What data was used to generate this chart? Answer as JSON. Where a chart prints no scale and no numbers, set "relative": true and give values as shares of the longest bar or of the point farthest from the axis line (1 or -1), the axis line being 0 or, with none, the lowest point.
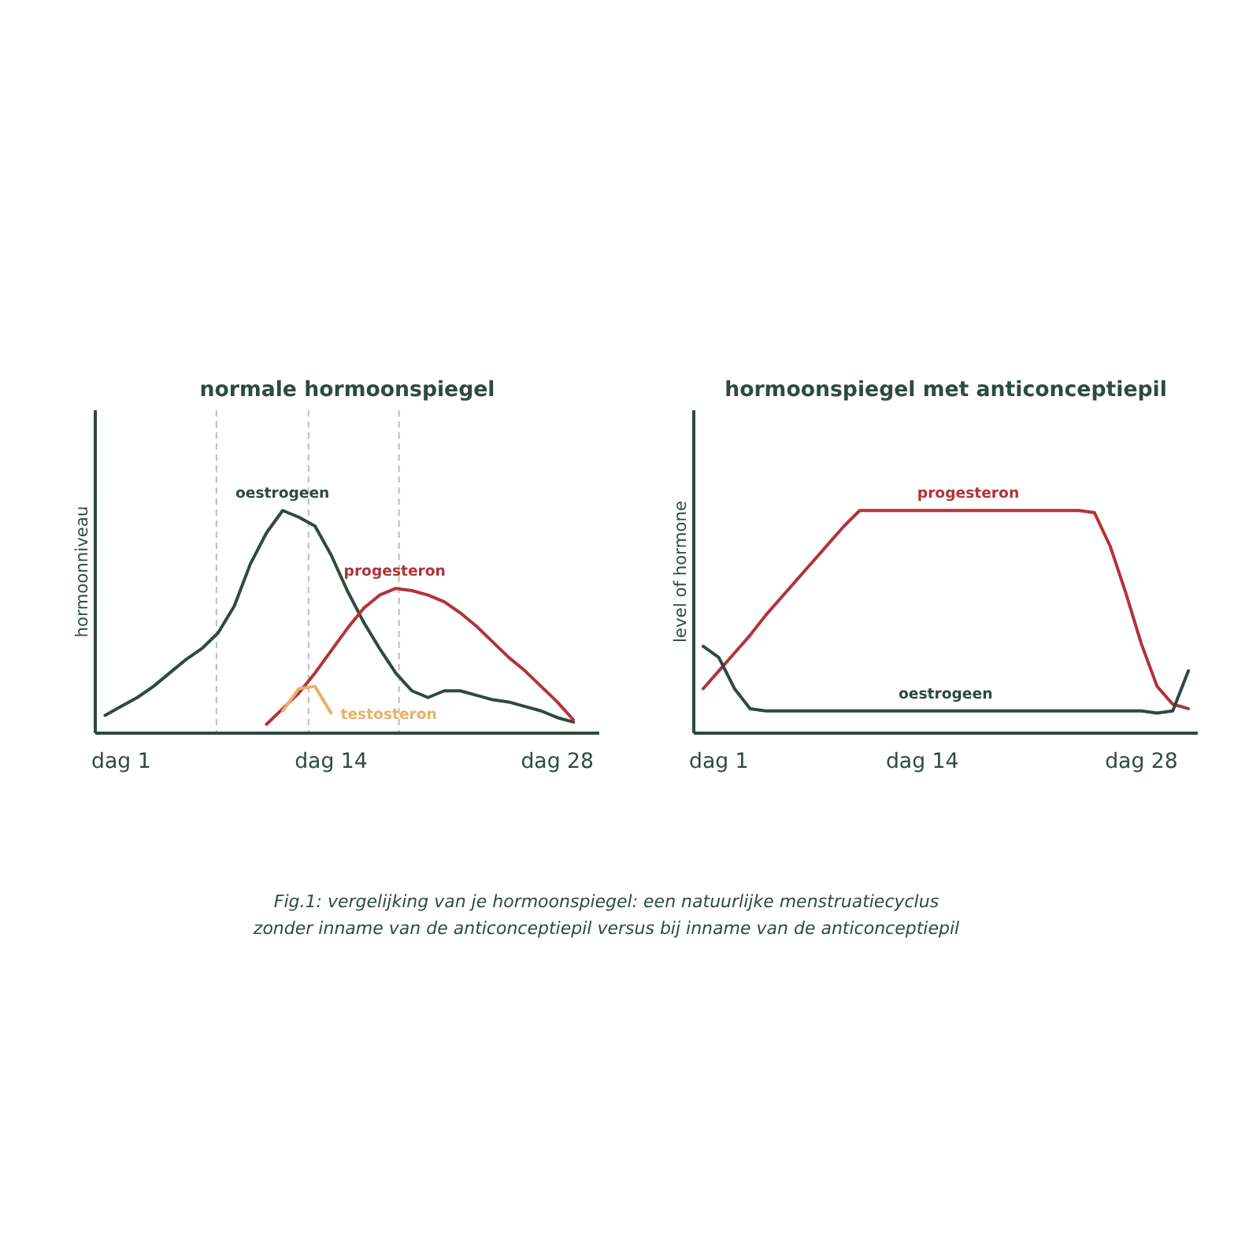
{
  "chart_data": [
    {
      "type": "line",
      "title": "normale hormoonspiegel",
      "ylabel": "hormoonniveau",
      "relative": true,
      "grid": false,
      "marker": "none",
      "line_style": "solid",
      "categories": [
        null,
        "dag 1",
        null,
        null,
        null,
        null,
        null,
        null,
        null,
        null,
        null,
        null,
        null,
        null,
        "dag 14",
        null,
        null,
        null,
        null,
        null,
        null,
        null,
        null,
        null,
        null,
        null,
        null,
        null,
        "dag 28",
        null,
        null
      ],
      "series": [
        {
          "name": "oestrogeen",
          "color": "#2d4a3e",
          "values": [
            0.08,
            0.12,
            0.16,
            0.21,
            0.27,
            0.33,
            0.38,
            0.45,
            0.57,
            0.76,
            0.9,
            1.0,
            0.97,
            0.93,
            0.8,
            0.64,
            0.5,
            0.38,
            0.27,
            0.19,
            0.16,
            0.19,
            0.19,
            0.17,
            0.15,
            0.14,
            0.12,
            0.1,
            0.07,
            0.05,
            null
          ]
        },
        {
          "name": "progesteron",
          "color": "#b0343a",
          "values": [
            null,
            null,
            null,
            null,
            null,
            null,
            null,
            null,
            null,
            null,
            0.04,
            0.11,
            0.18,
            0.27,
            0.37,
            0.47,
            0.56,
            0.62,
            0.65,
            0.64,
            0.62,
            0.59,
            0.54,
            0.48,
            0.41,
            0.34,
            0.28,
            0.21,
            0.14,
            0.06,
            null
          ]
        },
        {
          "name": "testosteron",
          "color": "#e6b26a",
          "values": [
            null,
            null,
            null,
            null,
            null,
            null,
            null,
            null,
            null,
            null,
            null,
            0.1,
            0.2,
            0.21,
            0.09,
            null,
            null,
            null,
            null,
            null,
            null,
            null,
            null,
            null,
            null,
            null,
            null,
            null,
            null,
            null,
            null
          ]
        }
      ],
      "annotations": [
        "Fig.1: vergelijking van je hormoonspiegel: een natuurlijke menstruatiecyclus\nzonder inname van de anticonceptiepil versus bij inname van de anticonceptiepil"
      ]
    },
    {
      "type": "line",
      "title": "hormoonspiegel met anticonceptiepil",
      "ylabel": "level of hormone",
      "relative": true,
      "grid": false,
      "marker": "none",
      "line_style": "solid",
      "categories": [
        null,
        "dag 1",
        null,
        null,
        null,
        null,
        null,
        null,
        null,
        null,
        null,
        null,
        null,
        null,
        "dag 14",
        null,
        null,
        null,
        null,
        null,
        null,
        null,
        null,
        null,
        null,
        null,
        null,
        null,
        "dag 28",
        null,
        null,
        null
      ],
      "series": [
        {
          "name": "progesteron",
          "color": "#b0343a",
          "values": [
            0.2,
            0.28,
            0.36,
            0.44,
            0.53,
            0.61,
            0.69,
            0.77,
            0.85,
            0.93,
            1.0,
            1.0,
            1.0,
            1.0,
            1.0,
            1.0,
            1.0,
            1.0,
            1.0,
            1.0,
            1.0,
            1.0,
            1.0,
            1.0,
            1.0,
            0.99,
            0.84,
            0.63,
            0.4,
            0.21,
            0.13,
            0.11
          ]
        },
        {
          "name": "oestrogeen",
          "color": "#2d4a3e",
          "values": [
            0.39,
            0.34,
            0.2,
            0.11,
            0.1,
            0.1,
            0.1,
            0.1,
            0.1,
            0.1,
            0.1,
            0.1,
            0.1,
            0.1,
            0.1,
            0.1,
            0.1,
            0.1,
            0.1,
            0.1,
            0.1,
            0.1,
            0.1,
            0.1,
            0.1,
            0.1,
            0.1,
            0.1,
            0.1,
            0.09,
            0.1,
            0.28
          ]
        }
      ]
    }
  ]
}
